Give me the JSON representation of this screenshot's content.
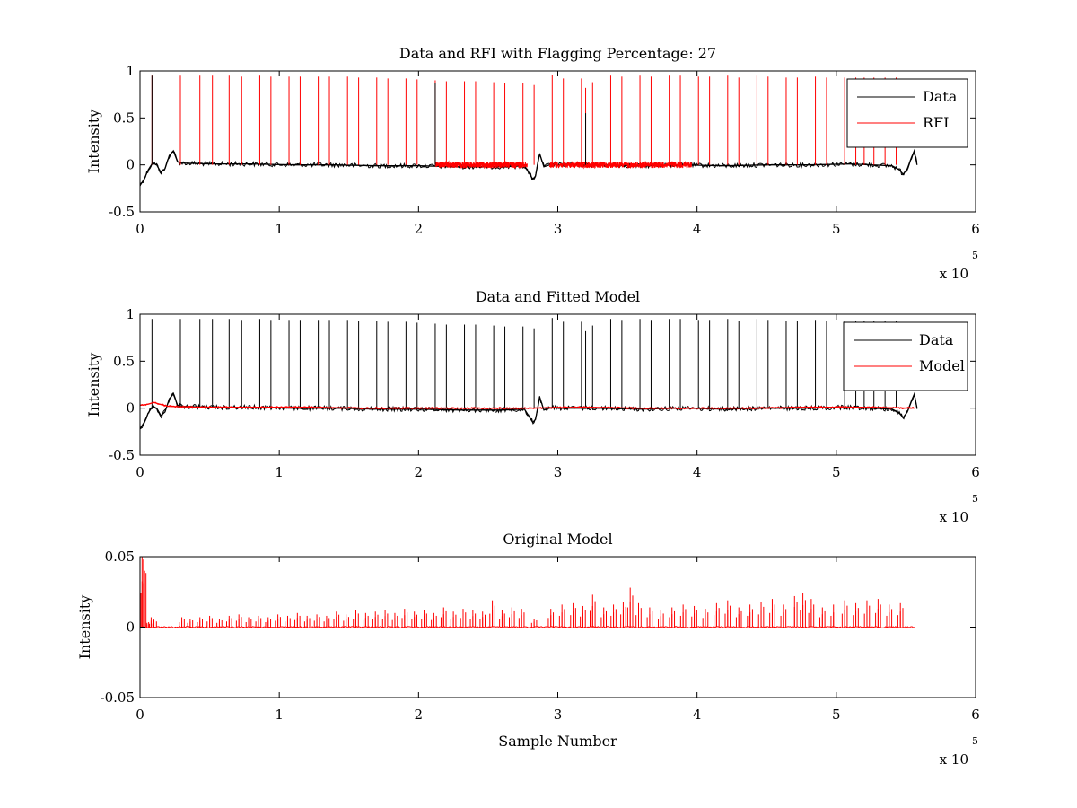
{
  "chart_data": [
    {
      "type": "line",
      "title": "Data and RFI with Flagging Percentage: 27",
      "xlabel": "",
      "ylabel": "Intensity",
      "xlim": [
        0,
        600000
      ],
      "ylim": [
        -0.5,
        1
      ],
      "x_ticks": [
        "0",
        "1",
        "2",
        "3",
        "4",
        "5",
        "6"
      ],
      "y_ticks": [
        "-0.5",
        "0",
        "0.5",
        "1"
      ],
      "x_exponent_label": "x 10",
      "x_exponent": "5",
      "grid": false,
      "legend_position": "top-right",
      "series": [
        {
          "name": "Data",
          "color": "#000000",
          "x": [
            0,
            3000,
            6000,
            9000,
            12000,
            15000,
            18000,
            21000,
            24000,
            27000,
            30000,
            50000,
            80000,
            110000,
            140000,
            170000,
            200000,
            230000,
            260000,
            276000,
            279000,
            282000,
            284000,
            287000,
            290000,
            294000,
            297000,
            300000,
            330000,
            360000,
            390000,
            420000,
            450000,
            480000,
            510000,
            540000,
            545000,
            548000,
            551000,
            554000,
            556000,
            558000
          ],
          "y": [
            -0.22,
            -0.15,
            -0.05,
            0.02,
            0.0,
            -0.08,
            -0.04,
            0.1,
            0.15,
            0.03,
            0.02,
            0.01,
            0.01,
            0.0,
            0.0,
            -0.01,
            -0.01,
            -0.02,
            -0.02,
            -0.01,
            -0.08,
            -0.15,
            -0.12,
            0.12,
            -0.02,
            0.0,
            0.01,
            0.0,
            0.0,
            -0.01,
            0.0,
            -0.01,
            0.0,
            0.0,
            0.01,
            -0.01,
            -0.05,
            -0.1,
            -0.04,
            0.08,
            0.15,
            0.0
          ]
        },
        {
          "name": "RFI",
          "color": "#ff0000",
          "spikes": {
            "x": [
              8600,
              29000,
              43000,
              52000,
              64000,
              73000,
              86000,
              94000,
              107000,
              115000,
              128000,
              136000,
              149000,
              157000,
              170000,
              178000,
              191000,
              199000,
              212000,
              220000,
              233000,
              241000,
              254000,
              262000,
              275000,
              283000,
              296000,
              304000,
              317000,
              320000,
              325000,
              338000,
              346000,
              359000,
              367000,
              380000,
              388000,
              401000,
              409000,
              422000,
              430000,
              443000,
              451000,
              464000,
              472000,
              485000,
              493000,
              506000,
              514000,
              520000,
              527000,
              535000,
              543000
            ],
            "y": [
              0.95,
              0.95,
              0.95,
              0.95,
              0.95,
              0.94,
              0.95,
              0.94,
              0.94,
              0.94,
              0.94,
              0.94,
              0.94,
              0.93,
              0.93,
              0.92,
              0.92,
              0.91,
              0.9,
              0.89,
              0.89,
              0.89,
              0.88,
              0.87,
              0.87,
              0.85,
              0.96,
              0.92,
              0.92,
              0.82,
              0.88,
              0.95,
              0.94,
              0.95,
              0.94,
              0.95,
              0.95,
              0.94,
              0.94,
              0.95,
              0.93,
              0.95,
              0.94,
              0.93,
              0.93,
              0.94,
              0.93,
              0.93,
              0.93,
              0.93,
              0.93,
              0.93,
              0.93
            ]
          },
          "dense_segments": [
            [
              212000,
              278000
            ],
            [
              294000,
              396000
            ]
          ]
        }
      ]
    },
    {
      "type": "line",
      "title": "Data and Fitted Model",
      "xlabel": "",
      "ylabel": "Intensity",
      "xlim": [
        0,
        600000
      ],
      "ylim": [
        -0.5,
        1
      ],
      "x_ticks": [
        "0",
        "1",
        "2",
        "3",
        "4",
        "5",
        "6"
      ],
      "y_ticks": [
        "-0.5",
        "0",
        "0.5",
        "1"
      ],
      "x_exponent_label": "x 10",
      "x_exponent": "5",
      "grid": false,
      "legend_position": "top-right",
      "series": [
        {
          "name": "Data",
          "color": "#000000",
          "x": [
            0,
            3000,
            6000,
            9000,
            12000,
            15000,
            18000,
            21000,
            24000,
            27000,
            30000,
            50000,
            80000,
            110000,
            140000,
            170000,
            200000,
            230000,
            260000,
            276000,
            279000,
            282000,
            284000,
            287000,
            290000,
            294000,
            297000,
            300000,
            330000,
            360000,
            390000,
            420000,
            450000,
            480000,
            510000,
            540000,
            545000,
            548000,
            551000,
            554000,
            556000,
            558000
          ],
          "y": [
            -0.22,
            -0.15,
            -0.05,
            0.02,
            0.0,
            -0.08,
            -0.04,
            0.1,
            0.15,
            0.03,
            0.02,
            0.01,
            0.01,
            0.0,
            0.0,
            -0.01,
            -0.01,
            -0.02,
            -0.02,
            -0.01,
            -0.08,
            -0.15,
            -0.12,
            0.12,
            -0.02,
            0.0,
            0.01,
            0.0,
            0.0,
            -0.01,
            0.0,
            -0.01,
            0.0,
            0.0,
            0.01,
            -0.01,
            -0.05,
            -0.1,
            -0.04,
            0.08,
            0.15,
            0.0
          ],
          "spikes": {
            "x": [
              8600,
              29000,
              43000,
              52000,
              64000,
              73000,
              86000,
              94000,
              107000,
              115000,
              128000,
              136000,
              149000,
              157000,
              170000,
              178000,
              191000,
              199000,
              212000,
              220000,
              233000,
              241000,
              254000,
              262000,
              275000,
              283000,
              296000,
              304000,
              317000,
              320000,
              325000,
              338000,
              346000,
              359000,
              367000,
              380000,
              388000,
              401000,
              409000,
              422000,
              430000,
              443000,
              451000,
              464000,
              472000,
              485000,
              493000,
              506000,
              514000,
              520000,
              527000,
              535000,
              543000
            ],
            "y": [
              0.95,
              0.95,
              0.95,
              0.95,
              0.95,
              0.94,
              0.95,
              0.94,
              0.94,
              0.94,
              0.94,
              0.94,
              0.94,
              0.93,
              0.93,
              0.92,
              0.92,
              0.91,
              0.9,
              0.89,
              0.89,
              0.89,
              0.88,
              0.87,
              0.87,
              0.85,
              0.96,
              0.92,
              0.92,
              0.82,
              0.88,
              0.95,
              0.94,
              0.95,
              0.94,
              0.95,
              0.95,
              0.94,
              0.94,
              0.95,
              0.93,
              0.95,
              0.94,
              0.93,
              0.93,
              0.94,
              0.93,
              0.93,
              0.93,
              0.93,
              0.93,
              0.93,
              0.93
            ]
          }
        },
        {
          "name": "Model",
          "color": "#ff0000",
          "x": [
            0,
            5000,
            10000,
            20000,
            40000,
            80000,
            120000,
            160000,
            200000,
            240000,
            280000,
            320000,
            360000,
            400000,
            440000,
            480000,
            520000,
            556000
          ],
          "y": [
            0.03,
            0.04,
            0.06,
            0.02,
            0.01,
            0.01,
            0.01,
            0.0,
            0.0,
            0.0,
            0.0,
            0.01,
            0.0,
            0.0,
            0.0,
            0.01,
            0.01,
            0.0
          ]
        }
      ]
    },
    {
      "type": "line",
      "title": "Original Model",
      "xlabel": "Sample Number",
      "ylabel": "Intensity",
      "xlim": [
        0,
        600000
      ],
      "ylim": [
        -0.05,
        0.05
      ],
      "x_ticks": [
        "0",
        "1",
        "2",
        "3",
        "4",
        "5",
        "6"
      ],
      "y_ticks": [
        "-0.05",
        "0",
        "0.05"
      ],
      "x_exponent_label": "x 10",
      "x_exponent": "5",
      "grid": false,
      "series": [
        {
          "color": "#ff0000",
          "baseline_range": [
            0,
            556000
          ],
          "spikes": {
            "x": [
              1500,
              2500,
              5000,
              8000,
              10000,
              30000,
              36000,
              43000,
              50000,
              57000,
              64000,
              71000,
              78000,
              85000,
              92000,
              99000,
              106000,
              113000,
              120000,
              127000,
              134000,
              141000,
              148000,
              155000,
              162000,
              169000,
              176000,
              183000,
              190000,
              197000,
              204000,
              211000,
              218000,
              225000,
              232000,
              239000,
              246000,
              253000,
              260000,
              267000,
              274000,
              283000,
              295000,
              303000,
              311000,
              318000,
              325000,
              333000,
              340000,
              347000,
              352000,
              358000,
              366000,
              374000,
              382000,
              390000,
              398000,
              406000,
              414000,
              422000,
              430000,
              438000,
              446000,
              454000,
              462000,
              470000,
              476000,
              482000,
              490000,
              498000,
              506000,
              514000,
              522000,
              530000,
              538000,
              546000
            ],
            "y": [
              0.05,
              0.048,
              0.003,
              0.007,
              0.005,
              0.007,
              0.006,
              0.007,
              0.008,
              0.006,
              0.008,
              0.009,
              0.007,
              0.008,
              0.007,
              0.009,
              0.008,
              0.01,
              0.008,
              0.009,
              0.008,
              0.011,
              0.009,
              0.012,
              0.01,
              0.011,
              0.012,
              0.01,
              0.013,
              0.011,
              0.012,
              0.01,
              0.014,
              0.011,
              0.013,
              0.012,
              0.011,
              0.019,
              0.012,
              0.014,
              0.013,
              0.006,
              0.013,
              0.016,
              0.017,
              0.015,
              0.023,
              0.014,
              0.016,
              0.018,
              0.028,
              0.017,
              0.014,
              0.012,
              0.014,
              0.016,
              0.015,
              0.013,
              0.017,
              0.019,
              0.014,
              0.016,
              0.018,
              0.02,
              0.016,
              0.022,
              0.024,
              0.02,
              0.014,
              0.016,
              0.019,
              0.017,
              0.019,
              0.02,
              0.016,
              0.017
            ]
          }
        }
      ]
    }
  ]
}
